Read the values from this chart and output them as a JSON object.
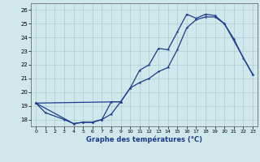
{
  "xlabel": "Graphe des températures (°C)",
  "line1_x": [
    0,
    1,
    3,
    4,
    5,
    6,
    7,
    8,
    9
  ],
  "line1_y": [
    19.2,
    18.5,
    18.0,
    17.7,
    17.8,
    17.8,
    18.0,
    19.3,
    19.3
  ],
  "line2_x": [
    0,
    4,
    5,
    6,
    7,
    8,
    9,
    10,
    11,
    12,
    13,
    14,
    15,
    16,
    17,
    18,
    19,
    20,
    21,
    22,
    23
  ],
  "line2_y": [
    19.2,
    17.7,
    17.8,
    17.8,
    18.0,
    18.4,
    19.3,
    20.3,
    21.6,
    22.0,
    23.2,
    23.1,
    24.4,
    25.7,
    25.4,
    25.7,
    25.6,
    25.0,
    23.9,
    22.5,
    21.3
  ],
  "line3_x": [
    0,
    9,
    10,
    11,
    12,
    13,
    14,
    15,
    16,
    17,
    18,
    19,
    20,
    23
  ],
  "line3_y": [
    19.2,
    19.3,
    20.3,
    20.7,
    21.0,
    21.5,
    21.8,
    23.1,
    24.7,
    25.3,
    25.5,
    25.5,
    25.0,
    21.3
  ],
  "ylim": [
    17.5,
    26.5
  ],
  "xlim": [
    -0.5,
    23.5
  ],
  "yticks": [
    18,
    19,
    20,
    21,
    22,
    23,
    24,
    25,
    26
  ],
  "xticks": [
    0,
    1,
    2,
    3,
    4,
    5,
    6,
    7,
    8,
    9,
    10,
    11,
    12,
    13,
    14,
    15,
    16,
    17,
    18,
    19,
    20,
    21,
    22,
    23
  ],
  "line_color": "#1E3A8A",
  "bg_color": "#D0E8EC",
  "grid_color": "#AACDD4"
}
